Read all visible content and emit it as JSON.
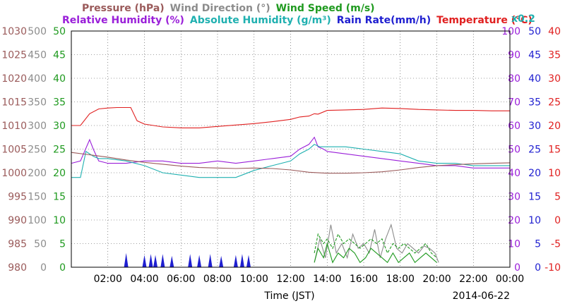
{
  "header": {
    "row1": [
      {
        "label": "Pressure (hPa)",
        "color": "#9a5a5a"
      },
      {
        "label": "Wind Direction (°)",
        "color": "#8c8c8c"
      },
      {
        "label": "Wind Speed (m/s)",
        "color": "#1f9a1f"
      }
    ],
    "row2": [
      {
        "label": "Relative Humidity (%)",
        "color": "#9a1fd9"
      },
      {
        "label": "Absolute Humidity (g/m³)",
        "color": "#1fb0b0"
      },
      {
        "label": "Rain Rate(mm/h)",
        "color": "#1f1fd0"
      },
      {
        "label": "Temperature (°C)",
        "color": "#e01f1f"
      }
    ],
    "scale_note": "x0.2"
  },
  "footer": {
    "xlabel": "Time (JST)",
    "date": "2014-06-22"
  },
  "chart_data": {
    "type": "line",
    "xlabel": "Time (JST)",
    "date": "2014-06-22",
    "xlim": [
      0,
      24
    ],
    "x_ticks": [
      "02:00",
      "04:00",
      "06:00",
      "08:00",
      "10:00",
      "12:00",
      "14:00",
      "16:00",
      "18:00",
      "20:00",
      "22:00",
      "00:00"
    ],
    "grid": true,
    "axes": [
      {
        "id": "pressure",
        "name": "Pressure (hPa)",
        "side": "left",
        "range": [
          980,
          1030
        ],
        "ticks": [
          980,
          985,
          990,
          995,
          1000,
          1005,
          1010,
          1015,
          1020,
          1025,
          1030
        ],
        "color": "#9a5a5a"
      },
      {
        "id": "wind_dir",
        "name": "Wind Direction (°)",
        "side": "left",
        "range": [
          0,
          500
        ],
        "ticks": [
          0,
          50,
          100,
          150,
          200,
          250,
          300,
          350,
          400,
          450,
          500
        ],
        "color": "#8c8c8c"
      },
      {
        "id": "wind_speed",
        "name": "Wind Speed (m/s)",
        "side": "left",
        "range": [
          0,
          50
        ],
        "ticks": [
          0,
          5,
          10,
          15,
          20,
          25,
          30,
          35,
          40,
          45,
          50
        ],
        "color": "#1f9a1f"
      },
      {
        "id": "humidity",
        "name": "Relative Humidity (%)",
        "side": "right",
        "range": [
          0,
          100
        ],
        "ticks": [
          0,
          10,
          20,
          30,
          40,
          50,
          60,
          70,
          80,
          90,
          100
        ],
        "color": "#9a1fd9"
      },
      {
        "id": "rain",
        "name": "Rain Rate(mm/h)",
        "side": "right",
        "range": [
          0,
          50
        ],
        "ticks": [
          0,
          5,
          10,
          15,
          20,
          25,
          30,
          35,
          40,
          45,
          50
        ],
        "color": "#1f1fd0"
      },
      {
        "id": "temp",
        "name": "Temperature (°C)",
        "side": "right",
        "range": [
          -10,
          40
        ],
        "ticks": [
          -10,
          -5,
          0,
          5,
          10,
          15,
          20,
          25,
          30,
          35,
          40
        ],
        "color": "#e01f1f"
      }
    ],
    "series": [
      {
        "name": "Temperature (°C)",
        "axis": "temp",
        "color": "#e01f1f",
        "x": [
          0,
          0.5,
          1.0,
          1.5,
          2.0,
          2.5,
          3.0,
          3.25,
          3.6,
          4.0,
          5.0,
          6.0,
          7.0,
          8.0,
          9.0,
          10.0,
          11.0,
          12.0,
          12.5,
          13.0,
          13.3,
          13.5,
          14.0,
          15.0,
          16.0,
          17.0,
          18.0,
          19.0,
          20.0,
          21.0,
          22.0,
          23.0,
          24.0
        ],
        "y": [
          20.0,
          20.0,
          22.5,
          23.5,
          23.7,
          23.8,
          23.8,
          23.8,
          21.0,
          20.3,
          19.7,
          19.5,
          19.5,
          19.8,
          20.1,
          20.4,
          20.8,
          21.3,
          21.8,
          22.0,
          22.5,
          22.4,
          23.2,
          23.3,
          23.4,
          23.7,
          23.6,
          23.4,
          23.3,
          23.2,
          23.2,
          23.1,
          23.1
        ]
      },
      {
        "name": "Relative Humidity (%)",
        "axis": "humidity",
        "color": "#9a1fd9",
        "x": [
          0,
          0.5,
          1.0,
          1.2,
          1.5,
          2.0,
          3.0,
          4.0,
          5.0,
          6.0,
          7.0,
          8.0,
          9.0,
          10.0,
          11.0,
          12.0,
          12.5,
          13.0,
          13.3,
          13.5,
          13.8,
          14.0,
          15.0,
          16.0,
          17.0,
          18.0,
          19.0,
          20.0,
          21.0,
          22.0,
          23.0,
          24.0
        ],
        "y": [
          44,
          45,
          54,
          50,
          45,
          44,
          44,
          45,
          45,
          44,
          44,
          45,
          44,
          45,
          46,
          47,
          50,
          52,
          55,
          51,
          50,
          49,
          48,
          47,
          46,
          45,
          44,
          43,
          43,
          42,
          42,
          42
        ]
      },
      {
        "name": "Absolute Humidity (g/m³)",
        "axis": "humidity",
        "color": "#1fb0b0",
        "scale": "x0.2",
        "x": [
          0,
          0.5,
          0.8,
          1.2,
          1.5,
          2.0,
          3.0,
          4.0,
          5.0,
          6.0,
          7.0,
          8.0,
          9.0,
          10.0,
          11.0,
          12.0,
          12.5,
          13.0,
          13.3,
          13.6,
          14.0,
          15.0,
          16.0,
          17.0,
          18.0,
          19.0,
          20.0,
          21.0,
          22.0,
          23.0,
          24.0
        ],
        "y": [
          38,
          38,
          49,
          47,
          46,
          46,
          45,
          43,
          40,
          39,
          38,
          38,
          38,
          41,
          43,
          45,
          48,
          50,
          52,
          51,
          51,
          51,
          50,
          49,
          48,
          45,
          44,
          44,
          43,
          43,
          43
        ]
      },
      {
        "name": "Pressure (hPa)",
        "axis": "pressure",
        "color": "#9a5a5a",
        "x": [
          0,
          1,
          2,
          3,
          4,
          5,
          6,
          7,
          8,
          9,
          10,
          11,
          12,
          13,
          14,
          15,
          16,
          17,
          18,
          19,
          20,
          21,
          22,
          23,
          24
        ],
        "y": [
          1004.3,
          1003.8,
          1003.3,
          1002.7,
          1002.2,
          1001.8,
          1001.4,
          1001.1,
          1001.0,
          1000.9,
          1001.0,
          1000.9,
          1000.6,
          1000.1,
          999.9,
          999.9,
          1000.0,
          1000.2,
          1000.6,
          1001.1,
          1001.5,
          1001.7,
          1001.9,
          1002.0,
          1002.1
        ]
      },
      {
        "name": "Wind Direction (°)",
        "axis": "wind_dir",
        "color": "#8c8c8c",
        "x": [
          13.3,
          13.6,
          13.9,
          14.2,
          14.5,
          14.8,
          15.1,
          15.4,
          15.7,
          16.0,
          16.3,
          16.6,
          16.9,
          17.2,
          17.5,
          17.8,
          18.1,
          18.4,
          18.7,
          19.0,
          19.3,
          19.6,
          19.9,
          20.1
        ],
        "y": [
          10,
          60,
          20,
          90,
          30,
          50,
          20,
          70,
          40,
          50,
          30,
          80,
          20,
          60,
          90,
          40,
          30,
          50,
          40,
          30,
          45,
          40,
          30,
          10
        ]
      },
      {
        "name": "Wind Speed (m/s)",
        "axis": "wind_speed",
        "color": "#1f9a1f",
        "x": [
          13.3,
          13.5,
          13.8,
          14.0,
          14.3,
          14.6,
          14.9,
          15.2,
          15.5,
          15.8,
          16.1,
          16.4,
          16.7,
          17.0,
          17.3,
          17.6,
          17.9,
          18.2,
          18.5,
          18.8,
          19.1,
          19.4,
          19.7,
          20.0
        ],
        "y": [
          1,
          4,
          2,
          5,
          1,
          3,
          2,
          4,
          3,
          1,
          2,
          4,
          3,
          2,
          1,
          3,
          1,
          2,
          3,
          1,
          2,
          3,
          2,
          1
        ]
      },
      {
        "name": "Wind Speed (m/s)",
        "axis": "wind_speed",
        "color": "#1f9a1f",
        "x": [
          13.3,
          13.5,
          13.8,
          14.0,
          14.3,
          14.6,
          14.9,
          15.2,
          15.5,
          15.8,
          16.1,
          16.4,
          16.7,
          17.0,
          17.3,
          17.6,
          17.9,
          18.2,
          18.5,
          18.8,
          19.1,
          19.4,
          19.7,
          20.0
        ],
        "y": [
          3,
          7,
          5,
          6,
          4,
          7,
          5,
          6,
          5,
          4,
          5,
          6,
          5,
          6,
          3,
          5,
          4,
          5,
          4,
          3,
          4,
          5,
          3,
          2
        ]
      }
    ],
    "rain_bars": {
      "axis": "rain",
      "color": "#1f1fd0",
      "x": [
        3.0,
        4.0,
        4.35,
        4.6,
        5.0,
        5.5,
        6.5,
        7.0,
        7.6,
        8.2,
        9.0,
        9.35,
        9.7
      ],
      "y": [
        3.0,
        2.6,
        2.8,
        2.6,
        2.8,
        2.4,
        2.8,
        2.6,
        2.8,
        2.4,
        2.6,
        2.8,
        2.6
      ]
    }
  }
}
